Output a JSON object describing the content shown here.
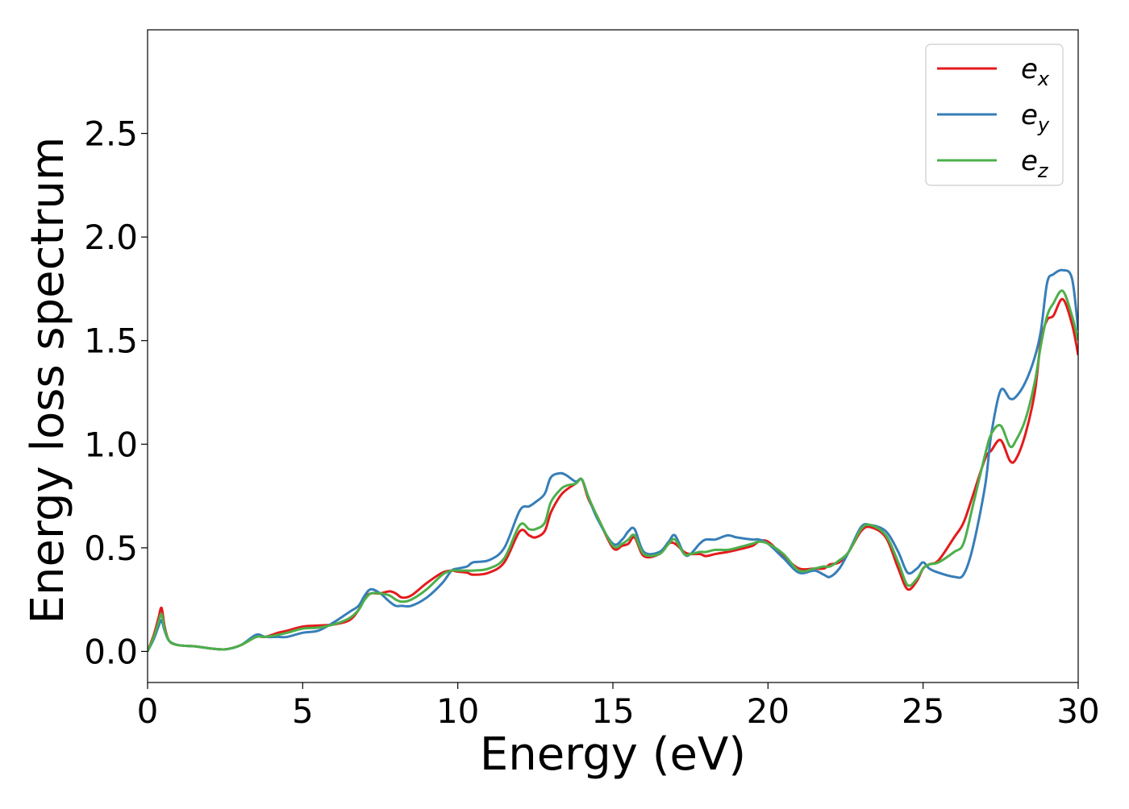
{
  "chart_data": {
    "type": "line",
    "title": "",
    "xlabel": "Energy (eV)",
    "ylabel": "Energy loss spectrum",
    "xlim": [
      0,
      30
    ],
    "ylim": [
      -0.15,
      3.0
    ],
    "xticks": [
      0,
      5,
      10,
      15,
      20,
      25,
      30
    ],
    "yticks": [
      0.0,
      0.5,
      1.0,
      1.5,
      2.0,
      2.5
    ],
    "xtick_labels": [
      "0",
      "5",
      "10",
      "15",
      "20",
      "25",
      "30"
    ],
    "ytick_labels": [
      "0.0",
      "0.5",
      "1.0",
      "1.5",
      "2.0",
      "2.5"
    ],
    "grid": false,
    "legend": "top-right",
    "series": [
      {
        "name": "e",
        "subscript": "x",
        "color": "#e41a1c",
        "x": [
          0,
          0.2,
          0.35,
          0.45,
          0.55,
          0.7,
          1.0,
          1.5,
          2.0,
          2.5,
          3.0,
          3.5,
          3.8,
          4.2,
          4.5,
          5.0,
          5.5,
          6.0,
          6.5,
          6.8,
          7.0,
          7.2,
          7.5,
          7.8,
          8.0,
          8.2,
          8.5,
          9.0,
          9.5,
          9.8,
          10.0,
          10.3,
          10.5,
          11.0,
          11.5,
          12.0,
          12.3,
          12.5,
          12.8,
          13.0,
          13.3,
          13.5,
          13.8,
          14.0,
          14.2,
          14.5,
          15.0,
          15.3,
          15.5,
          15.7,
          16.0,
          16.5,
          16.8,
          17.0,
          17.3,
          17.5,
          17.8,
          18.0,
          18.3,
          18.7,
          19.0,
          19.5,
          19.7,
          20.0,
          20.5,
          21.0,
          21.5,
          21.8,
          22.0,
          22.3,
          22.6,
          23.0,
          23.3,
          23.8,
          24.2,
          24.5,
          24.8,
          25.0,
          25.2,
          25.5,
          26.0,
          26.3,
          26.6,
          27.0,
          27.2,
          27.5,
          27.8,
          28.0,
          28.3,
          28.6,
          28.8,
          29.0,
          29.2,
          29.5,
          29.8,
          30.0
        ],
        "values": [
          0.0,
          0.08,
          0.16,
          0.21,
          0.12,
          0.05,
          0.03,
          0.025,
          0.015,
          0.01,
          0.03,
          0.07,
          0.07,
          0.09,
          0.1,
          0.12,
          0.125,
          0.13,
          0.15,
          0.2,
          0.26,
          0.28,
          0.28,
          0.29,
          0.28,
          0.26,
          0.27,
          0.33,
          0.38,
          0.39,
          0.385,
          0.38,
          0.37,
          0.38,
          0.43,
          0.58,
          0.56,
          0.55,
          0.58,
          0.67,
          0.75,
          0.78,
          0.81,
          0.83,
          0.74,
          0.65,
          0.5,
          0.51,
          0.52,
          0.55,
          0.46,
          0.47,
          0.52,
          0.52,
          0.48,
          0.47,
          0.47,
          0.46,
          0.47,
          0.48,
          0.49,
          0.51,
          0.53,
          0.53,
          0.46,
          0.4,
          0.4,
          0.4,
          0.42,
          0.43,
          0.48,
          0.58,
          0.6,
          0.55,
          0.4,
          0.3,
          0.34,
          0.4,
          0.42,
          0.44,
          0.55,
          0.62,
          0.75,
          0.93,
          0.97,
          1.02,
          0.92,
          0.93,
          1.05,
          1.25,
          1.5,
          1.6,
          1.62,
          1.7,
          1.58,
          1.43
        ]
      },
      {
        "name": "e",
        "subscript": "y",
        "color": "#377eb8",
        "x": [
          0,
          0.2,
          0.35,
          0.45,
          0.55,
          0.7,
          1.0,
          1.5,
          2.0,
          2.5,
          3.0,
          3.5,
          3.8,
          4.2,
          4.5,
          5.0,
          5.5,
          6.0,
          6.5,
          6.8,
          7.0,
          7.2,
          7.5,
          7.8,
          8.0,
          8.2,
          8.5,
          9.0,
          9.5,
          9.8,
          10.0,
          10.3,
          10.5,
          11.0,
          11.5,
          12.0,
          12.3,
          12.5,
          12.8,
          13.0,
          13.3,
          13.5,
          13.8,
          14.0,
          14.2,
          14.5,
          15.0,
          15.3,
          15.5,
          15.7,
          16.0,
          16.5,
          16.8,
          17.0,
          17.3,
          17.5,
          17.8,
          18.0,
          18.3,
          18.7,
          19.0,
          19.5,
          19.7,
          20.0,
          20.5,
          21.0,
          21.5,
          21.8,
          22.0,
          22.3,
          22.6,
          23.0,
          23.3,
          23.8,
          24.2,
          24.5,
          24.8,
          25.0,
          25.2,
          25.5,
          26.0,
          26.3,
          26.6,
          27.0,
          27.2,
          27.5,
          27.8,
          28.0,
          28.3,
          28.6,
          28.8,
          29.0,
          29.2,
          29.5,
          29.8,
          30.0
        ],
        "values": [
          0.0,
          0.06,
          0.12,
          0.15,
          0.1,
          0.05,
          0.03,
          0.025,
          0.015,
          0.01,
          0.03,
          0.08,
          0.07,
          0.07,
          0.07,
          0.09,
          0.1,
          0.14,
          0.19,
          0.22,
          0.27,
          0.3,
          0.28,
          0.24,
          0.22,
          0.22,
          0.22,
          0.26,
          0.33,
          0.39,
          0.4,
          0.41,
          0.43,
          0.44,
          0.5,
          0.68,
          0.7,
          0.72,
          0.76,
          0.84,
          0.86,
          0.85,
          0.82,
          0.83,
          0.75,
          0.64,
          0.52,
          0.54,
          0.58,
          0.59,
          0.48,
          0.48,
          0.53,
          0.56,
          0.47,
          0.47,
          0.52,
          0.54,
          0.54,
          0.56,
          0.55,
          0.54,
          0.54,
          0.52,
          0.45,
          0.38,
          0.39,
          0.37,
          0.36,
          0.4,
          0.48,
          0.6,
          0.61,
          0.58,
          0.48,
          0.38,
          0.4,
          0.43,
          0.4,
          0.38,
          0.36,
          0.37,
          0.5,
          0.8,
          1.05,
          1.26,
          1.22,
          1.23,
          1.3,
          1.42,
          1.55,
          1.78,
          1.82,
          1.84,
          1.8,
          1.55
        ]
      },
      {
        "name": "e",
        "subscript": "z",
        "color": "#4daf4a",
        "x": [
          0,
          0.2,
          0.35,
          0.45,
          0.55,
          0.7,
          1.0,
          1.5,
          2.0,
          2.5,
          3.0,
          3.5,
          3.8,
          4.2,
          4.5,
          5.0,
          5.5,
          6.0,
          6.5,
          6.8,
          7.0,
          7.2,
          7.5,
          7.8,
          8.0,
          8.2,
          8.5,
          9.0,
          9.5,
          9.8,
          10.0,
          10.3,
          10.5,
          11.0,
          11.5,
          12.0,
          12.3,
          12.5,
          12.8,
          13.0,
          13.3,
          13.5,
          13.8,
          14.0,
          14.2,
          14.5,
          15.0,
          15.3,
          15.5,
          15.7,
          16.0,
          16.5,
          16.8,
          17.0,
          17.3,
          17.5,
          17.8,
          18.0,
          18.3,
          18.7,
          19.0,
          19.5,
          19.7,
          20.0,
          20.5,
          21.0,
          21.5,
          21.8,
          22.0,
          22.3,
          22.6,
          23.0,
          23.3,
          23.8,
          24.2,
          24.5,
          24.8,
          25.0,
          25.2,
          25.5,
          26.0,
          26.3,
          26.6,
          27.0,
          27.2,
          27.5,
          27.8,
          28.0,
          28.3,
          28.6,
          28.8,
          29.0,
          29.2,
          29.5,
          29.8,
          30.0
        ],
        "values": [
          0.0,
          0.07,
          0.14,
          0.18,
          0.11,
          0.05,
          0.03,
          0.025,
          0.015,
          0.01,
          0.03,
          0.07,
          0.07,
          0.08,
          0.09,
          0.11,
          0.115,
          0.13,
          0.16,
          0.2,
          0.25,
          0.28,
          0.28,
          0.27,
          0.25,
          0.24,
          0.25,
          0.3,
          0.37,
          0.39,
          0.39,
          0.39,
          0.39,
          0.4,
          0.45,
          0.61,
          0.59,
          0.59,
          0.62,
          0.72,
          0.78,
          0.8,
          0.81,
          0.83,
          0.75,
          0.65,
          0.51,
          0.52,
          0.54,
          0.56,
          0.47,
          0.47,
          0.52,
          0.54,
          0.47,
          0.47,
          0.48,
          0.48,
          0.49,
          0.49,
          0.5,
          0.52,
          0.53,
          0.52,
          0.47,
          0.39,
          0.4,
          0.41,
          0.41,
          0.44,
          0.48,
          0.59,
          0.61,
          0.56,
          0.43,
          0.32,
          0.35,
          0.4,
          0.42,
          0.43,
          0.48,
          0.52,
          0.7,
          0.95,
          1.05,
          1.09,
          0.99,
          1.02,
          1.12,
          1.3,
          1.48,
          1.62,
          1.68,
          1.74,
          1.62,
          1.5
        ]
      }
    ]
  }
}
